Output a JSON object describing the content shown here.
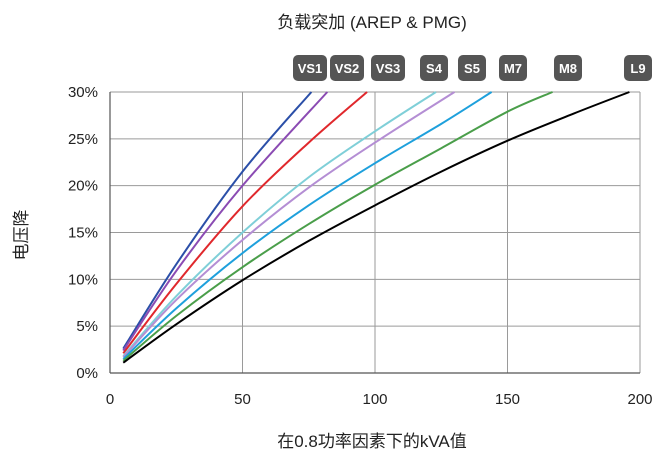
{
  "chart_data": {
    "type": "line",
    "title": "负载突加 (AREP & PMG)",
    "xlabel": "在0.8功率因素下的kVA值",
    "ylabel": "电压降",
    "xlim": [
      0,
      200
    ],
    "ylim": [
      0,
      30
    ],
    "x_ticks": [
      0,
      50,
      100,
      150,
      200
    ],
    "x_tick_labels": [
      "0",
      "50",
      "100",
      "150",
      "200"
    ],
    "y_ticks": [
      0,
      5,
      10,
      15,
      20,
      25,
      30
    ],
    "y_tick_labels": [
      "0%",
      "5%",
      "10%",
      "15%",
      "20%",
      "25%",
      "30%"
    ],
    "grid": true,
    "legend": "top, boxed labels above curve ends",
    "series": [
      {
        "name": "VS1",
        "color": "#2b4fa8",
        "x": [
          5,
          25,
          50,
          76
        ],
        "y": [
          2.6,
          11.6,
          21.5,
          30
        ]
      },
      {
        "name": "VS2",
        "color": "#8b4bb3",
        "x": [
          5,
          25,
          50,
          82
        ],
        "y": [
          2.4,
          10.9,
          20,
          30
        ]
      },
      {
        "name": "VS3",
        "color": "#e0282c",
        "x": [
          5,
          25,
          50,
          75,
          97
        ],
        "y": [
          2.1,
          9.5,
          17.8,
          24.6,
          30
        ]
      },
      {
        "name": "S4",
        "color": "#7fcfd8",
        "x": [
          5,
          25,
          50,
          75,
          100,
          123
        ],
        "y": [
          1.8,
          8.2,
          15,
          20.9,
          25.8,
          30
        ]
      },
      {
        "name": "S5",
        "color": "#b48ed4",
        "x": [
          5,
          25,
          50,
          75,
          100,
          130
        ],
        "y": [
          1.7,
          7.8,
          14.2,
          19.8,
          24.6,
          30
        ]
      },
      {
        "name": "M7",
        "color": "#1ea0dc",
        "x": [
          5,
          25,
          50,
          75,
          100,
          125,
          144
        ],
        "y": [
          1.5,
          6.9,
          12.8,
          17.9,
          22.4,
          26.6,
          30
        ]
      },
      {
        "name": "M8",
        "color": "#4a9e4a",
        "x": [
          5,
          25,
          50,
          75,
          100,
          125,
          150,
          167
        ],
        "y": [
          1.3,
          6.1,
          11.3,
          15.9,
          20.1,
          24,
          27.9,
          30
        ]
      },
      {
        "name": "L9",
        "color": "#000000",
        "x": [
          5,
          25,
          50,
          75,
          100,
          125,
          150,
          175,
          196
        ],
        "y": [
          1.1,
          5.2,
          9.9,
          14.1,
          17.9,
          21.5,
          24.8,
          27.7,
          30
        ]
      }
    ]
  }
}
